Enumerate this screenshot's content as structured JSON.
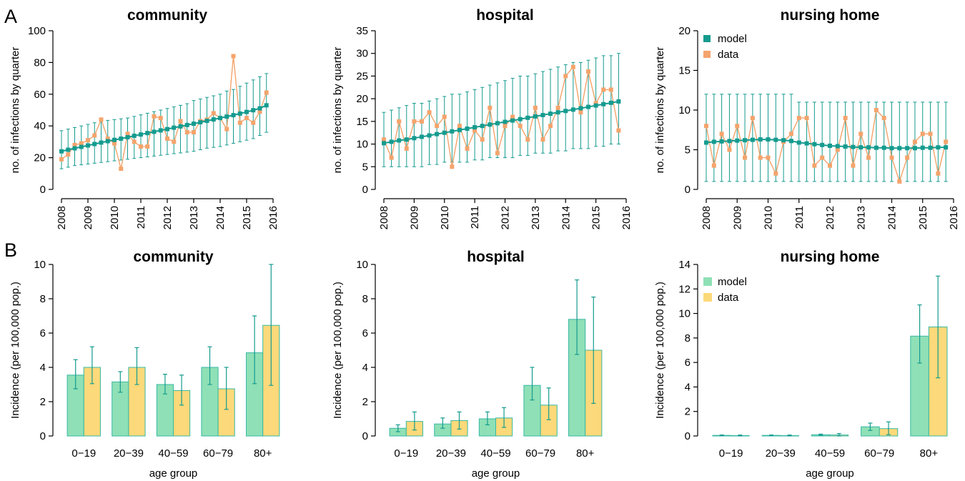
{
  "panel_letters": [
    "A",
    "B"
  ],
  "colors": {
    "model_line": "#159b8f",
    "data_line": "#f4a46c",
    "model_bar": "#8fe0b6",
    "data_bar": "#fcd97a",
    "bar_edge": "#36b8a4"
  },
  "chart_data": [
    {
      "type": "line",
      "title": "community",
      "ylabel": "no. of infections by quarter",
      "xlim": [
        2008,
        2016
      ],
      "ylim": [
        0,
        100
      ],
      "yticks": [
        0,
        20,
        40,
        60,
        80,
        100
      ],
      "xticks": [
        2008,
        2009,
        2010,
        2011,
        2012,
        2013,
        2014,
        2015,
        2016
      ],
      "x": [
        2008.0,
        2008.25,
        2008.5,
        2008.75,
        2009.0,
        2009.25,
        2009.5,
        2009.75,
        2010.0,
        2010.25,
        2010.5,
        2010.75,
        2011.0,
        2011.25,
        2011.5,
        2011.75,
        2012.0,
        2012.25,
        2012.5,
        2012.75,
        2013.0,
        2013.25,
        2013.5,
        2013.75,
        2014.0,
        2014.25,
        2014.5,
        2014.75,
        2015.0,
        2015.25,
        2015.5,
        2015.75
      ],
      "series": [
        {
          "name": "model",
          "values": [
            24,
            25,
            25.9,
            26.8,
            27.7,
            28.6,
            29.5,
            30.4,
            31.2,
            32,
            32.9,
            33.8,
            34.6,
            35.5,
            36.3,
            37.2,
            38,
            38.9,
            39.7,
            40.6,
            41.4,
            42.3,
            43.2,
            44.1,
            45,
            45.9,
            46.8,
            47.8,
            48.8,
            49.9,
            51.1,
            53
          ],
          "lower": [
            13,
            14,
            15,
            15.5,
            16,
            16.5,
            17,
            17.5,
            18,
            18.5,
            19,
            19.5,
            20,
            20.5,
            21,
            21.5,
            22,
            22.5,
            23,
            23.5,
            24,
            25,
            26,
            26.5,
            27,
            28,
            29,
            30,
            31,
            32,
            34,
            36
          ],
          "upper": [
            37,
            38,
            39,
            40,
            41,
            42,
            43,
            43.5,
            44,
            44.5,
            45,
            46,
            47,
            48,
            49,
            50,
            51,
            52,
            53,
            54,
            56,
            57,
            58,
            59,
            60,
            62,
            63,
            65,
            67,
            69,
            71,
            73
          ]
        },
        {
          "name": "data",
          "values": [
            19,
            22,
            28,
            29,
            31,
            34,
            44,
            32,
            29,
            13,
            35,
            30,
            27,
            27,
            46,
            45,
            32,
            30,
            43,
            36,
            36,
            43,
            44,
            48,
            45,
            38,
            84,
            42,
            45,
            42,
            49,
            61
          ]
        }
      ],
      "legend": null
    },
    {
      "type": "line",
      "title": "hospital",
      "ylabel": "no. of infections by quarter",
      "xlim": [
        2008,
        2016
      ],
      "ylim": [
        0,
        35
      ],
      "yticks": [
        0,
        5,
        10,
        15,
        20,
        25,
        30,
        35
      ],
      "xticks": [
        2008,
        2009,
        2010,
        2011,
        2012,
        2013,
        2014,
        2015,
        2016
      ],
      "x": [
        2008.0,
        2008.25,
        2008.5,
        2008.75,
        2009.0,
        2009.25,
        2009.5,
        2009.75,
        2010.0,
        2010.25,
        2010.5,
        2010.75,
        2011.0,
        2011.25,
        2011.5,
        2011.75,
        2012.0,
        2012.25,
        2012.5,
        2012.75,
        2013.0,
        2013.25,
        2013.5,
        2013.75,
        2014.0,
        2014.25,
        2014.5,
        2014.75,
        2015.0,
        2015.25,
        2015.5,
        2015.75
      ],
      "series": [
        {
          "name": "model",
          "values": [
            10.2,
            10.5,
            10.8,
            11,
            11.3,
            11.6,
            11.9,
            12.2,
            12.5,
            12.8,
            13.1,
            13.4,
            13.7,
            14,
            14.3,
            14.6,
            14.9,
            15.2,
            15.5,
            15.8,
            16.1,
            16.4,
            16.7,
            17,
            17.3,
            17.6,
            17.9,
            18.2,
            18.5,
            18.8,
            19.1,
            19.4
          ],
          "lower": [
            5,
            5,
            5,
            5,
            5,
            5,
            5.5,
            5.5,
            6,
            6,
            6,
            6,
            6.5,
            6.5,
            7,
            7,
            7,
            7,
            7.5,
            7.5,
            8,
            8,
            8,
            8.5,
            8.5,
            9,
            9,
            9,
            9.5,
            9.5,
            10,
            10
          ],
          "upper": [
            17,
            17.5,
            18,
            18.5,
            19,
            19,
            19.5,
            20,
            20.5,
            21,
            21,
            21.5,
            22,
            22.5,
            23,
            23.5,
            24,
            24.5,
            25,
            25,
            25.5,
            26,
            26.5,
            27,
            27.5,
            28,
            28,
            28.5,
            29,
            29.5,
            29.5,
            30
          ]
        },
        {
          "name": "data",
          "values": [
            11,
            7,
            15,
            9,
            15,
            15,
            17,
            14,
            16,
            5,
            14,
            9,
            13,
            11,
            18,
            8,
            14,
            16,
            14,
            11,
            18,
            11,
            14,
            18,
            25,
            27,
            17,
            26,
            19,
            22,
            22,
            13
          ]
        }
      ],
      "legend": null
    },
    {
      "type": "line",
      "title": "nursing home",
      "ylabel": "no. of infections by quarter",
      "xlim": [
        2008,
        2016
      ],
      "ylim": [
        0,
        20
      ],
      "yticks": [
        0,
        5,
        10,
        15,
        20
      ],
      "xticks": [
        2008,
        2009,
        2010,
        2011,
        2012,
        2013,
        2014,
        2015,
        2016
      ],
      "x": [
        2008.0,
        2008.25,
        2008.5,
        2008.75,
        2009.0,
        2009.25,
        2009.5,
        2009.75,
        2010.0,
        2010.25,
        2010.5,
        2010.75,
        2011.0,
        2011.25,
        2011.5,
        2011.75,
        2012.0,
        2012.25,
        2012.5,
        2012.75,
        2013.0,
        2013.25,
        2013.5,
        2013.75,
        2014.0,
        2014.25,
        2014.5,
        2014.75,
        2015.0,
        2015.25,
        2015.5,
        2015.75
      ],
      "series": [
        {
          "name": "model",
          "values": [
            5.9,
            6,
            6.05,
            6.1,
            6.15,
            6.2,
            6.25,
            6.3,
            6.3,
            6.25,
            6.2,
            6.1,
            5.9,
            5.8,
            5.7,
            5.6,
            5.5,
            5.45,
            5.4,
            5.35,
            5.3,
            5.3,
            5.25,
            5.25,
            5.2,
            5.2,
            5.2,
            5.2,
            5.25,
            5.25,
            5.3,
            5.3
          ],
          "lower": [
            1,
            1,
            1,
            1,
            1,
            1,
            1,
            1,
            1,
            1,
            1,
            1,
            1,
            1,
            1,
            1,
            1,
            1,
            1,
            1,
            1,
            1,
            1,
            1,
            1,
            1,
            1,
            1,
            1,
            1,
            1,
            1
          ],
          "upper": [
            12,
            12,
            12,
            12,
            12,
            12,
            12,
            12,
            12,
            12,
            12,
            12,
            11,
            11,
            11,
            11,
            11,
            11,
            11,
            11,
            11,
            11,
            11,
            11,
            11,
            11,
            11,
            11,
            11,
            11,
            11,
            11
          ]
        },
        {
          "name": "data",
          "values": [
            8,
            3,
            7,
            5,
            8,
            4,
            9,
            4,
            4,
            2,
            6,
            7,
            9,
            9,
            3,
            4,
            3,
            5,
            9,
            3,
            7,
            4,
            10,
            9,
            4,
            1,
            4,
            6,
            7,
            7,
            2,
            6
          ]
        }
      ],
      "legend": {
        "entries": [
          "model",
          "data"
        ],
        "position": "top-left"
      }
    },
    {
      "type": "bar",
      "title": "community",
      "ylabel": "Incidence (per 100,000 pop.)",
      "xlabel": "age group",
      "categories": [
        "0−19",
        "20−39",
        "40−59",
        "60−79",
        "80+"
      ],
      "ylim": [
        0,
        10
      ],
      "yticks": [
        0,
        2,
        4,
        6,
        8,
        10
      ],
      "series": [
        {
          "name": "model",
          "values": [
            3.55,
            3.15,
            3.0,
            4.0,
            4.85
          ],
          "lower": [
            2.75,
            2.55,
            2.45,
            3.0,
            3.05
          ],
          "upper": [
            4.45,
            3.75,
            3.6,
            5.2,
            7.0
          ]
        },
        {
          "name": "data",
          "values": [
            4.0,
            4.0,
            2.65,
            2.75,
            6.45
          ],
          "lower": [
            3.05,
            3.0,
            1.8,
            1.55,
            2.95
          ],
          "upper": [
            5.2,
            5.15,
            3.55,
            4.0,
            10.0
          ]
        }
      ],
      "legend": null
    },
    {
      "type": "bar",
      "title": "hospital",
      "ylabel": "Incidence (per 100,000 pop.)",
      "xlabel": "age group",
      "categories": [
        "0−19",
        "20−39",
        "40−59",
        "60−79",
        "80+"
      ],
      "ylim": [
        0,
        10
      ],
      "yticks": [
        0,
        2,
        4,
        6,
        8,
        10
      ],
      "series": [
        {
          "name": "model",
          "values": [
            0.45,
            0.7,
            1.0,
            2.95,
            6.8
          ],
          "lower": [
            0.25,
            0.45,
            0.65,
            2.1,
            4.75
          ],
          "upper": [
            0.65,
            1.05,
            1.4,
            4.0,
            9.1
          ]
        },
        {
          "name": "data",
          "values": [
            0.85,
            0.9,
            1.05,
            1.8,
            5.0
          ],
          "lower": [
            0.35,
            0.4,
            0.5,
            0.95,
            1.9
          ],
          "upper": [
            1.4,
            1.4,
            1.65,
            2.8,
            8.1
          ]
        }
      ],
      "legend": null
    },
    {
      "type": "bar",
      "title": "nursing home",
      "ylabel": "Incidence (per 100,000 pop.)",
      "xlabel": "age group",
      "categories": [
        "0−19",
        "20−39",
        "40−59",
        "60−79",
        "80+"
      ],
      "ylim": [
        0,
        14
      ],
      "yticks": [
        0,
        2,
        4,
        6,
        8,
        10,
        12,
        14
      ],
      "series": [
        {
          "name": "model",
          "values": [
            0.05,
            0.05,
            0.1,
            0.75,
            8.15
          ],
          "lower": [
            0.02,
            0.02,
            0.05,
            0.45,
            5.95
          ],
          "upper": [
            0.08,
            0.08,
            0.15,
            1.05,
            10.7
          ]
        },
        {
          "name": "data",
          "values": [
            0.03,
            0.03,
            0.08,
            0.6,
            8.9
          ],
          "lower": [
            0.0,
            0.0,
            0.0,
            0.1,
            4.75
          ],
          "upper": [
            0.08,
            0.08,
            0.2,
            1.15,
            13.05
          ]
        }
      ],
      "legend": {
        "entries": [
          "model",
          "data"
        ],
        "position": "top-left"
      }
    }
  ]
}
